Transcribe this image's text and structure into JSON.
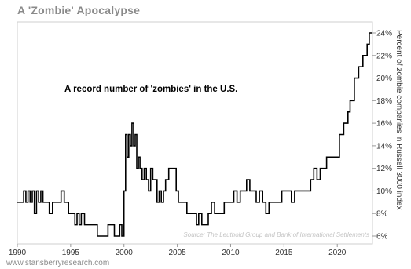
{
  "chart_data": {
    "type": "line",
    "title": "A 'Zombie' Apocalypse",
    "annotation": "A record number of 'zombies' in the U.S.",
    "source": "Source: The Leuthold Group and Bank of International Settlements",
    "footer": "www.stansberryresearch.com",
    "ylabel": "Percent of zombie companies in Russell 3000 index",
    "xlabel": "",
    "xlim": [
      1990,
      2023.3
    ],
    "ylim": [
      5.8,
      24.6
    ],
    "x_ticks": [
      1990,
      1995,
      2000,
      2005,
      2010,
      2015,
      2020
    ],
    "y_ticks": [
      "6%",
      "8%",
      "10%",
      "12%",
      "14%",
      "16%",
      "18%",
      "20%",
      "22%",
      "24%"
    ],
    "line_color": "#000000",
    "series": [
      {
        "step": true,
        "x": [
          1990.0,
          1990.6,
          1990.8,
          1991.0,
          1991.2,
          1991.4,
          1991.6,
          1991.8,
          1992.0,
          1992.2,
          1992.4,
          1992.6,
          1992.8,
          1993.0,
          1993.3,
          1993.6,
          1993.9,
          1994.1,
          1994.4,
          1994.6,
          1994.8,
          1995.0,
          1995.4,
          1995.6,
          1995.8,
          1996.0,
          1996.3,
          1996.6,
          1996.9,
          1997.2,
          1997.5,
          1997.8,
          1998.0,
          1998.5,
          1998.8,
          1999.1,
          1999.3,
          1999.6,
          1999.8,
          2000.0,
          2000.15,
          2000.3,
          2000.45,
          2000.6,
          2000.75,
          2000.9,
          2001.05,
          2001.2,
          2001.35,
          2001.5,
          2001.7,
          2001.9,
          2002.1,
          2002.3,
          2002.5,
          2002.7,
          2002.9,
          2003.1,
          2003.3,
          2003.5,
          2003.7,
          2003.9,
          2004.2,
          2004.6,
          2004.9,
          2005.1,
          2005.5,
          2005.9,
          2006.2,
          2006.5,
          2006.8,
          2007.0,
          2007.3,
          2007.6,
          2007.9,
          2008.2,
          2008.5,
          2008.8,
          2009.1,
          2009.4,
          2009.7,
          2010.0,
          2010.3,
          2010.6,
          2010.9,
          2011.2,
          2011.5,
          2011.8,
          2012.1,
          2012.4,
          2012.7,
          2013.0,
          2013.3,
          2013.6,
          2013.9,
          2014.2,
          2014.5,
          2014.8,
          2015.1,
          2015.4,
          2015.7,
          2016.0,
          2016.3,
          2016.6,
          2016.9,
          2017.2,
          2017.5,
          2017.8,
          2018.1,
          2018.4,
          2018.7,
          2019.0,
          2019.3,
          2019.6,
          2019.9,
          2020.2,
          2020.4,
          2020.6,
          2020.8,
          2021.0,
          2021.2,
          2021.4,
          2021.6,
          2021.8,
          2022.0,
          2022.2,
          2022.4,
          2022.6,
          2022.8,
          2023.0,
          2023.3
        ],
        "y": [
          9,
          10,
          9,
          10,
          9,
          10,
          8,
          10,
          9,
          10,
          9,
          9,
          9,
          8,
          9,
          9,
          9,
          10,
          9,
          9,
          8,
          8,
          7,
          8,
          7,
          8,
          7,
          7,
          7,
          7,
          6,
          6,
          6,
          7,
          7,
          6,
          6,
          7,
          6,
          10,
          15,
          13,
          15,
          14,
          16,
          14,
          15,
          12,
          13,
          12,
          11,
          12,
          11,
          10,
          12,
          11,
          11,
          9,
          10,
          9,
          10,
          11,
          12,
          12,
          10,
          9,
          9,
          8,
          8,
          8,
          7,
          8,
          7,
          7,
          8,
          9,
          8,
          8,
          8,
          9,
          9,
          9,
          10,
          9,
          10,
          10,
          11,
          10,
          10,
          9,
          10,
          9,
          8,
          9,
          9,
          9,
          9,
          10,
          10,
          10,
          9,
          10,
          10,
          10,
          10,
          10,
          11,
          12,
          11,
          12,
          12,
          13,
          13,
          13,
          13,
          15,
          15,
          16,
          16,
          17,
          18,
          18,
          20,
          20,
          21,
          21,
          22,
          22,
          23,
          24,
          24
        ]
      }
    ]
  }
}
